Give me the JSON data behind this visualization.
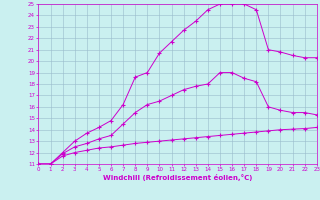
{
  "xlabel": "Windchill (Refroidissement éolien,°C)",
  "bg_color": "#caf0f0",
  "line_color": "#cc00cc",
  "grid_color": "#99bbcc",
  "xmin": 0,
  "xmax": 23,
  "ymin": 11,
  "ymax": 25,
  "line1_x": [
    0,
    1,
    2,
    3,
    4,
    5,
    6,
    7,
    8,
    9,
    10,
    11,
    12,
    13,
    14,
    15,
    16,
    17,
    18,
    19,
    20,
    21,
    22,
    23
  ],
  "line1_y": [
    11.0,
    11.0,
    11.7,
    12.0,
    12.2,
    12.4,
    12.5,
    12.65,
    12.8,
    12.9,
    13.0,
    13.1,
    13.2,
    13.3,
    13.4,
    13.5,
    13.6,
    13.7,
    13.8,
    13.9,
    14.0,
    14.05,
    14.1,
    14.2
  ],
  "line2_x": [
    0,
    1,
    2,
    3,
    4,
    5,
    6,
    7,
    8,
    9,
    10,
    11,
    12,
    13,
    14,
    15,
    16,
    17,
    18,
    19,
    20,
    21,
    22,
    23
  ],
  "line2_y": [
    11.0,
    11.0,
    11.9,
    12.5,
    12.8,
    13.2,
    13.5,
    14.5,
    15.5,
    16.2,
    16.5,
    17.0,
    17.5,
    17.8,
    18.0,
    19.0,
    19.0,
    18.5,
    18.2,
    16.0,
    15.7,
    15.5,
    15.5,
    15.3
  ],
  "line3_x": [
    0,
    1,
    2,
    3,
    4,
    5,
    6,
    7,
    8,
    9,
    10,
    11,
    12,
    13,
    14,
    15,
    16,
    17,
    18,
    19,
    20,
    21,
    22,
    23
  ],
  "line3_y": [
    11.0,
    11.0,
    12.0,
    13.0,
    13.7,
    14.2,
    14.8,
    16.2,
    18.6,
    19.0,
    20.7,
    21.7,
    22.7,
    23.5,
    24.5,
    25.0,
    25.0,
    25.0,
    24.5,
    21.0,
    20.8,
    20.5,
    20.3,
    20.3
  ]
}
